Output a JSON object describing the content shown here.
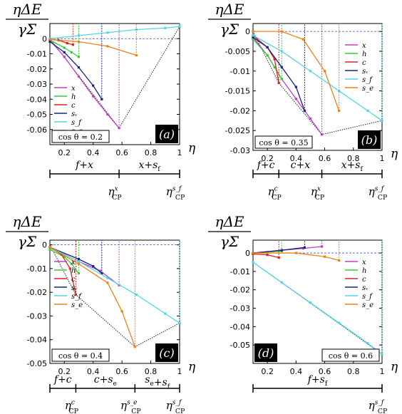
{
  "ylabel_num": "ηΔE",
  "ylabel_den": "γΣ",
  "xlabel": "η",
  "legend_labels": [
    "x",
    "h",
    "c",
    "sᵥ",
    "s_f",
    "s_e"
  ],
  "colors": {
    "x": "#c13ec1",
    "h": "#33cc33",
    "c": "#e02020",
    "sv": "#1a237e",
    "sf": "#4fd6e6",
    "se": "#f07f1a",
    "guide": "#222222"
  },
  "chart_data": [
    {
      "type": "line",
      "panel": "(a)",
      "cos_label": "cos θ = 0.2",
      "xlim": [
        0.1,
        1.0
      ],
      "ylim": [
        -0.07,
        0.01
      ],
      "x_ticks": [
        "0.2",
        "0.4",
        "0.6",
        "0.8",
        "1"
      ],
      "x_tick_values": [
        0.2,
        0.4,
        0.6,
        0.8,
        1.0
      ],
      "y_ticks": [
        "0",
        "-0.01",
        "-0.02",
        "-0.03",
        "-0.04",
        "-0.05",
        "-0.06"
      ],
      "y_tick_values": [
        0,
        -0.01,
        -0.02,
        -0.03,
        -0.04,
        -0.05,
        -0.06
      ],
      "series": [
        {
          "key": "x",
          "x": [
            0.1,
            0.2,
            0.3,
            0.4,
            0.5,
            0.58
          ],
          "y": [
            -0.001,
            -0.012,
            -0.025,
            -0.038,
            -0.05,
            -0.059
          ]
        },
        {
          "key": "h",
          "x": [
            0.1,
            0.2,
            0.25,
            0.3
          ],
          "y": [
            -0.001,
            -0.006,
            -0.009,
            -0.012
          ]
        },
        {
          "key": "c",
          "x": [
            0.1,
            0.16,
            0.22,
            0.26
          ],
          "y": [
            -0.0005,
            -0.001,
            -0.003,
            -0.004
          ]
        },
        {
          "key": "sv",
          "x": [
            0.1,
            0.2,
            0.3,
            0.4,
            0.46
          ],
          "y": [
            -0.002,
            -0.009,
            -0.019,
            -0.031,
            -0.04
          ]
        },
        {
          "key": "sf",
          "x": [
            0.1,
            0.3,
            0.5,
            0.7,
            0.9,
            1.0
          ],
          "y": [
            0.0,
            0.002,
            0.004,
            0.006,
            0.007,
            0.008
          ]
        },
        {
          "key": "se",
          "x": [
            0.1,
            0.3,
            0.5,
            0.7
          ],
          "y": [
            -0.0005,
            -0.002,
            -0.005,
            -0.011
          ]
        }
      ],
      "envelope": {
        "x": [
          0.1,
          0.58,
          1.0
        ],
        "y": [
          0.0,
          -0.059,
          0.008
        ]
      },
      "phases": {
        "boundaries": [
          0.1,
          0.58,
          1.0
        ],
        "labels": [
          "f+x",
          "x+s_f"
        ],
        "cp_labels": [
          "η_CP^x",
          "η_CP^{s_f}"
        ]
      }
    },
    {
      "type": "line",
      "panel": "(b)",
      "cos_label": "cos θ = 0.35",
      "xlim": [
        0.1,
        1.0
      ],
      "ylim": [
        -0.03,
        0.002
      ],
      "x_ticks": [
        "0.2",
        "0.4",
        "0.6",
        "0.8",
        "1"
      ],
      "x_tick_values": [
        0.2,
        0.4,
        0.6,
        0.8,
        1.0
      ],
      "y_ticks": [
        "0",
        "-0.005",
        "-0.01",
        "-0.015",
        "-0.02",
        "-0.025",
        "-0.03"
      ],
      "y_tick_values": [
        0,
        -0.005,
        -0.01,
        -0.015,
        -0.02,
        -0.025,
        -0.03
      ],
      "series": [
        {
          "key": "x",
          "x": [
            0.1,
            0.2,
            0.3,
            0.4,
            0.5,
            0.58
          ],
          "y": [
            -0.0015,
            -0.006,
            -0.012,
            -0.017,
            -0.022,
            -0.026
          ]
        },
        {
          "key": "h",
          "x": [
            0.1,
            0.2,
            0.25,
            0.3
          ],
          "y": [
            -0.002,
            -0.006,
            -0.009,
            -0.012
          ]
        },
        {
          "key": "c",
          "x": [
            0.1,
            0.2,
            0.25,
            0.28
          ],
          "y": [
            -0.001,
            -0.004,
            -0.007,
            -0.013
          ]
        },
        {
          "key": "sv",
          "x": [
            0.1,
            0.2,
            0.3,
            0.4,
            0.46
          ],
          "y": [
            -0.0015,
            -0.004,
            -0.009,
            -0.014,
            -0.02
          ]
        },
        {
          "key": "sf",
          "x": [
            0.1,
            0.3,
            0.5,
            0.7,
            0.9,
            1.0
          ],
          "y": [
            -0.001,
            -0.005,
            -0.01,
            -0.015,
            -0.02,
            -0.0225
          ]
        },
        {
          "key": "se",
          "x": [
            0.1,
            0.3,
            0.45,
            0.6,
            0.7
          ],
          "y": [
            0.0,
            0.0,
            -0.002,
            -0.01,
            -0.02
          ]
        }
      ],
      "envelope": {
        "x": [
          0.1,
          0.28,
          0.58,
          1.0
        ],
        "y": [
          0.0,
          -0.013,
          -0.026,
          -0.0225
        ]
      },
      "phases": {
        "boundaries": [
          0.1,
          0.28,
          0.58,
          1.0
        ],
        "labels": [
          "f+c",
          "c+x",
          "x+s_f"
        ],
        "cp_labels": [
          "η_CP^c",
          "η_CP^x",
          "η_CP^{s_f}"
        ]
      }
    },
    {
      "type": "line",
      "panel": "(c)",
      "cos_label": "cos θ = 0.4",
      "xlim": [
        0.1,
        1.0
      ],
      "ylim": [
        -0.05,
        0.002
      ],
      "x_ticks": [
        "0.2",
        "0.4",
        "0.6",
        "0.8",
        "1"
      ],
      "x_tick_values": [
        0.2,
        0.4,
        0.6,
        0.8,
        1.0
      ],
      "y_ticks": [
        "0",
        "-0.01",
        "-0.02",
        "-0.03",
        "-0.04",
        "-0.05"
      ],
      "y_tick_values": [
        0,
        -0.01,
        -0.02,
        -0.03,
        -0.04,
        -0.05
      ],
      "series": [
        {
          "key": "x",
          "x": [
            0.1,
            0.3,
            0.45,
            0.58
          ],
          "y": [
            -0.001,
            -0.007,
            -0.011,
            -0.017
          ]
        },
        {
          "key": "h",
          "x": [
            0.1,
            0.2,
            0.25,
            0.3
          ],
          "y": [
            -0.002,
            -0.005,
            -0.008,
            -0.012
          ]
        },
        {
          "key": "c",
          "x": [
            0.1,
            0.18,
            0.24,
            0.28
          ],
          "y": [
            -0.001,
            -0.004,
            -0.01,
            -0.021
          ]
        },
        {
          "key": "sv",
          "x": [
            0.1,
            0.3,
            0.4,
            0.46
          ],
          "y": [
            -0.001,
            -0.006,
            -0.009,
            -0.012
          ]
        },
        {
          "key": "sf",
          "x": [
            0.1,
            0.3,
            0.5,
            0.7,
            0.9,
            1.0
          ],
          "y": [
            -0.001,
            -0.007,
            -0.014,
            -0.021,
            -0.029,
            -0.033
          ]
        },
        {
          "key": "se",
          "x": [
            0.1,
            0.3,
            0.5,
            0.6,
            0.69
          ],
          "y": [
            -0.001,
            -0.008,
            -0.016,
            -0.028,
            -0.043
          ]
        }
      ],
      "envelope": {
        "x": [
          0.1,
          0.28,
          0.69,
          1.0
        ],
        "y": [
          0.0,
          -0.021,
          -0.043,
          -0.033
        ]
      },
      "phases": {
        "boundaries": [
          0.1,
          0.28,
          0.69,
          1.0
        ],
        "labels": [
          "f+c",
          "c+s_e",
          "s_e+s_f"
        ],
        "cp_labels": [
          "η_CP^c",
          "η_CP^{s_e}",
          "η_CP^{s_f}"
        ]
      }
    },
    {
      "type": "line",
      "panel": "(d)",
      "cos_label": "cos θ = 0.6",
      "xlim": [
        0.1,
        1.0
      ],
      "ylim": [
        -0.06,
        0.007
      ],
      "x_ticks": [
        "0.2",
        "0.4",
        "0.6",
        "0.8",
        "1"
      ],
      "x_tick_values": [
        0.2,
        0.4,
        0.6,
        0.8,
        1.0
      ],
      "y_ticks": [
        "0",
        "-0.01",
        "-0.02",
        "-0.03",
        "-0.04",
        "-0.05"
      ],
      "y_tick_values": [
        0,
        -0.01,
        -0.02,
        -0.03,
        -0.04,
        -0.05
      ],
      "series": [
        {
          "key": "x",
          "x": [
            0.1,
            0.3,
            0.45,
            0.58
          ],
          "y": [
            0.0,
            0.0015,
            0.0025,
            0.0035
          ]
        },
        {
          "key": "h",
          "x": [
            0.1,
            0.2,
            0.3
          ],
          "y": [
            0.0,
            0.0005,
            0.001
          ]
        },
        {
          "key": "c",
          "x": [
            0.1,
            0.2,
            0.28
          ],
          "y": [
            -0.0005,
            -0.001,
            -0.0025
          ]
        },
        {
          "key": "sv",
          "x": [
            0.1,
            0.3,
            0.46
          ],
          "y": [
            0.0,
            0.0015,
            0.003
          ]
        },
        {
          "key": "sf",
          "x": [
            0.1,
            0.3,
            0.5,
            0.7,
            0.9,
            1.0
          ],
          "y": [
            -0.005,
            -0.016,
            -0.027,
            -0.038,
            -0.049,
            -0.055
          ]
        },
        {
          "key": "se",
          "x": [
            0.1,
            0.4,
            0.6,
            0.7
          ],
          "y": [
            0.0,
            0.0,
            -0.002,
            -0.004
          ]
        }
      ],
      "envelope": {
        "x": [
          0.1,
          1.0
        ],
        "y": [
          -0.005,
          -0.055
        ]
      },
      "phases": {
        "boundaries": [
          0.1,
          1.0
        ],
        "labels": [
          "f+s_f"
        ],
        "cp_labels": [
          "η_CP^{s_f}"
        ]
      }
    }
  ]
}
